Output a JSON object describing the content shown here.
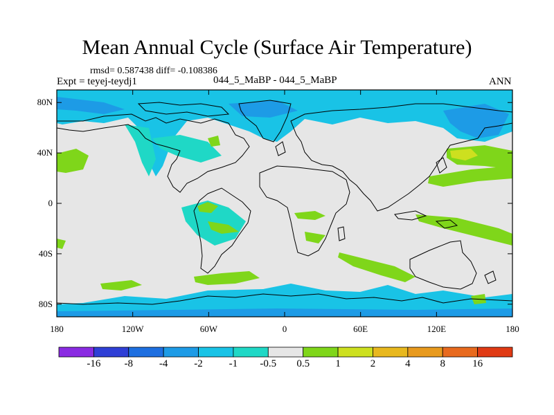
{
  "title": "Mean Annual Cycle (Surface Air Temperature)",
  "stats": "rmsd= 0.587438 diff= -0.108386",
  "experiment_label": "Expt = teyej-teydj1",
  "experiment_pair": "044_5_MaBP - 044_5_MaBP",
  "season": "ANN",
  "axes": {
    "lat_ticks": [
      {
        "label": "80N",
        "value": 80
      },
      {
        "label": "40N",
        "value": 40
      },
      {
        "label": "0",
        "value": 0
      },
      {
        "label": "40S",
        "value": -40
      },
      {
        "label": "80S",
        "value": -80
      }
    ],
    "lon_ticks": [
      {
        "label": "180",
        "value": -180
      },
      {
        "label": "120W",
        "value": -120
      },
      {
        "label": "60W",
        "value": -60
      },
      {
        "label": "0",
        "value": 0
      },
      {
        "label": "60E",
        "value": 60
      },
      {
        "label": "120E",
        "value": 120
      },
      {
        "label": "180",
        "value": 180
      }
    ],
    "lat_range": [
      -90,
      90
    ],
    "lon_range": [
      -180,
      180
    ]
  },
  "colorbar": {
    "colors": [
      "#8a2be2",
      "#2f3fd6",
      "#1e6fe0",
      "#1d9be6",
      "#19c3e6",
      "#1fd8c6",
      "#e6e6e6",
      "#7fd61a",
      "#cde01f",
      "#e8b81e",
      "#e89a1e",
      "#e86a1e",
      "#e03a14"
    ],
    "labels": [
      "-16",
      "-8",
      "-4",
      "-2",
      "-1",
      "-0.5",
      "0.5",
      "1",
      "2",
      "4",
      "8",
      "16"
    ]
  },
  "colors": {
    "background": "#e6e6e6",
    "cool_light": "#1fd8c6",
    "cool_mid": "#19c3e6",
    "cool_strong": "#1d9be6",
    "warm_light": "#7fd61a",
    "warm_mid": "#cde01f"
  }
}
